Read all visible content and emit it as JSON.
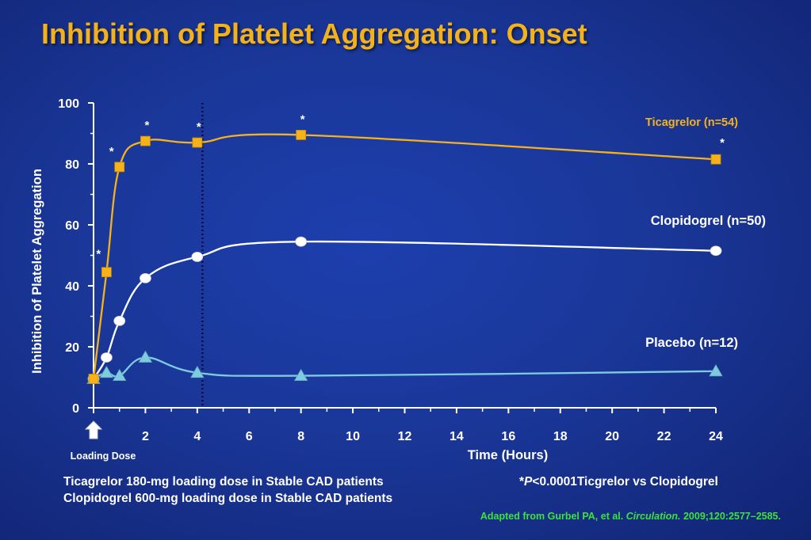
{
  "title": "Inhibition of Platelet Aggregation: Onset",
  "loading_dose_label": "Loading Dose",
  "footnotes": [
    "Ticagrelor 180-mg loading dose in Stable CAD patients",
    "Clopidogrel 600-mg loading dose in Stable CAD patients"
  ],
  "pvalue_note": {
    "star": "*",
    "p": "P",
    "rest": "<0.0001Ticgrelor vs Clopidogrel"
  },
  "source": {
    "prefix": "Adapted from Gurbel PA, et al. ",
    "journal": "Circulation.",
    "suffix": " 2009;120:2577–2585."
  },
  "colors": {
    "title": "#f3b21b",
    "ticagrelor": "#f5b21a",
    "clopidogrel": "#ffffff",
    "placebo": "#7ecbe0",
    "source": "#3de23a",
    "dotted_line": "#0b0b40"
  },
  "chart_data": {
    "type": "line",
    "xlabel": "Time (Hours)",
    "ylabel": "Inhibition of Platelet Aggregation",
    "xlim": [
      0,
      24
    ],
    "ylim": [
      0,
      100
    ],
    "xticks": [
      2,
      4,
      6,
      8,
      10,
      12,
      14,
      16,
      18,
      20,
      22,
      24
    ],
    "yticks": [
      0,
      20,
      40,
      60,
      80,
      100
    ],
    "reference_line_x": 4.2,
    "series": [
      {
        "name": "Ticagrelor (n=54)",
        "marker": "square",
        "x": [
          0,
          0.5,
          1,
          2,
          4,
          8,
          24
        ],
        "y": [
          9.5,
          44.5,
          79,
          87.5,
          87,
          89.5,
          81.5
        ],
        "significance": [
          false,
          true,
          true,
          true,
          true,
          true,
          true
        ]
      },
      {
        "name": "Clopidogrel (n=50)",
        "marker": "circle",
        "x": [
          0,
          0.5,
          1,
          2,
          4,
          8,
          24
        ],
        "y": [
          9.5,
          16.5,
          28.5,
          42.5,
          49.5,
          54.5,
          51.5
        ]
      },
      {
        "name": "Placebo (n=12)",
        "marker": "triangle",
        "x": [
          0,
          0.5,
          1,
          2,
          4,
          8,
          24
        ],
        "y": [
          9.5,
          11.5,
          10.5,
          16.5,
          11.5,
          10.5,
          12
        ]
      }
    ],
    "annotation_symbol": "*"
  }
}
